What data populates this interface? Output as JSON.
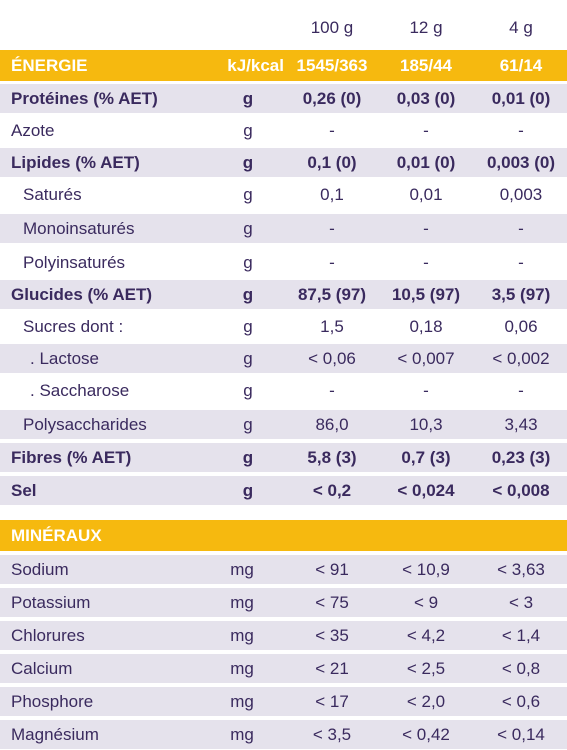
{
  "header": {
    "col_100g": "100 g",
    "col_12g": "12 g",
    "col_4g": "4 g"
  },
  "energy": {
    "label": "ÉNERGIE",
    "unit": "kJ/kcal",
    "v100": "1545/363",
    "v12": "185/44",
    "v4": "61/14"
  },
  "nutrients": [
    {
      "label": "Protéines (% AET)",
      "unit": "g",
      "v100": "0,26 (0)",
      "v12": "0,03 (0)",
      "v4": "0,01 (0)"
    },
    {
      "label": "Azote",
      "unit": "g",
      "v100": "-",
      "v12": "-",
      "v4": "-"
    },
    {
      "label": "Lipides (% AET)",
      "unit": "g",
      "v100": "0,1 (0)",
      "v12": "0,01 (0)",
      "v4": "0,003 (0)"
    },
    {
      "label": "Saturés",
      "unit": "g",
      "v100": "0,1",
      "v12": "0,01",
      "v4": "0,003"
    },
    {
      "label": "Monoinsaturés",
      "unit": "g",
      "v100": "-",
      "v12": "-",
      "v4": "-"
    },
    {
      "label": "Polyinsaturés",
      "unit": "g",
      "v100": "-",
      "v12": "-",
      "v4": "-"
    },
    {
      "label": "Glucides (% AET)",
      "unit": "g",
      "v100": "87,5 (97)",
      "v12": "10,5 (97)",
      "v4": "3,5 (97)"
    },
    {
      "label": "Sucres dont :",
      "unit": "g",
      "v100": "1,5",
      "v12": "0,18",
      "v4": "0,06"
    },
    {
      "label": ". Lactose",
      "unit": "g",
      "v100": "< 0,06",
      "v12": "< 0,007",
      "v4": "< 0,002"
    },
    {
      "label": ". Saccharose",
      "unit": "g",
      "v100": "-",
      "v12": "-",
      "v4": "-"
    },
    {
      "label": "Polysaccharides",
      "unit": "g",
      "v100": "86,0",
      "v12": "10,3",
      "v4": "3,43"
    },
    {
      "label": "Fibres (% AET)",
      "unit": "g",
      "v100": "5,8 (3)",
      "v12": "0,7 (3)",
      "v4": "0,23 (3)"
    },
    {
      "label": "Sel",
      "unit": "g",
      "v100": "< 0,2",
      "v12": "< 0,024",
      "v4": "< 0,008"
    }
  ],
  "minerals_title": "MINÉRAUX",
  "minerals": [
    {
      "label": "Sodium",
      "unit": "mg",
      "v100": "< 91",
      "v12": "< 10,9",
      "v4": "< 3,63"
    },
    {
      "label": "Potassium",
      "unit": "mg",
      "v100": "< 75",
      "v12": "< 9",
      "v4": "< 3"
    },
    {
      "label": "Chlorures",
      "unit": "mg",
      "v100": "< 35",
      "v12": "< 4,2",
      "v4": "< 1,4"
    },
    {
      "label": "Calcium",
      "unit": "mg",
      "v100": "< 21",
      "v12": "< 2,5",
      "v4": "< 0,8"
    },
    {
      "label": "Phosphore",
      "unit": "mg",
      "v100": "< 17",
      "v12": "< 2,0",
      "v4": "< 0,6"
    },
    {
      "label": "Magnésium",
      "unit": "mg",
      "v100": "< 3,5",
      "v12": "< 0,42",
      "v4": "< 0,14"
    }
  ],
  "colors": {
    "accent": "#f6b90f",
    "row_shade": "#e5e2ec",
    "text": "#3a2a5e"
  }
}
